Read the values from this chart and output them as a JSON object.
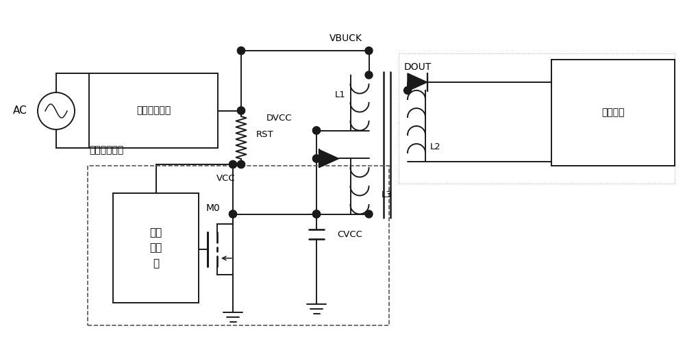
{
  "bg_color": "#ffffff",
  "line_color": "#1a1a1a",
  "fig_width": 10.0,
  "fig_height": 4.92,
  "labels": {
    "AC": "AC",
    "hv_block": "高压整流滤波",
    "vbuck": "VBUCK",
    "vcc": "VCC",
    "rst": "RST",
    "dvcc": "DVCC",
    "l1": "L1",
    "l2": "L2",
    "l3": "L3",
    "dout": "DOUT",
    "cvcc": "CVCC",
    "output_block": "输出负载",
    "pwm_block": "脉宽\n调制\n器",
    "ic_label": "集成电路部分",
    "m0": "M0"
  }
}
